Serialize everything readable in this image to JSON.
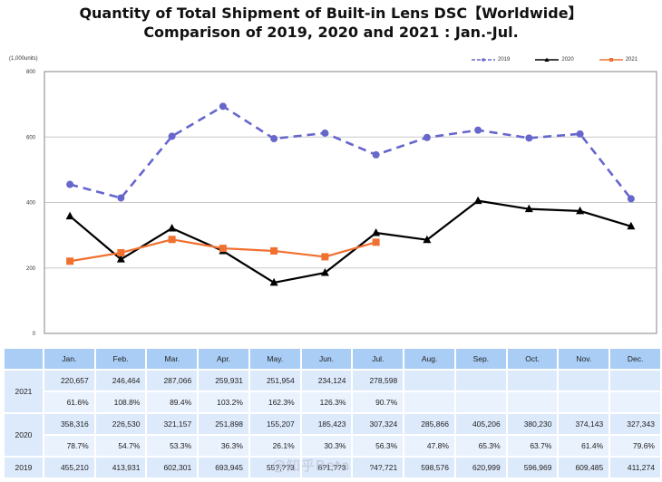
{
  "title_line1": "Quantity of Total Shipment of Built-in Lens DSC【Worldwide】",
  "title_line2": "Comparison of 2019, 2020 and 2021 : Jan.-Jul.",
  "chart_data": {
    "type": "line",
    "title": "Quantity of Total Shipment of Built-in Lens DSC【Worldwide】 Comparison of 2019, 2020 and 2021 : Jan.-Jul.",
    "ylabel": "(1,000units)",
    "xlabel": "",
    "ylim": [
      0,
      800
    ],
    "yticks": [
      0,
      200,
      400,
      600,
      800
    ],
    "grid": true,
    "legend_position": "top-right",
    "categories": [
      "Jan.",
      "Feb.",
      "Mar.",
      "Apr.",
      "May.",
      "Jun.",
      "Jul.",
      "Aug.",
      "Sep.",
      "Oct.",
      "Nov.",
      "Dec."
    ],
    "series": [
      {
        "name": "2019",
        "color": "#6666cc",
        "style": "dashed",
        "marker": "circle",
        "values": [
          455.2,
          413.9,
          602.3,
          693.9,
          595,
          612,
          545.7,
          598.6,
          621.0,
          597.0,
          609.5,
          411.3
        ]
      },
      {
        "name": "2020",
        "color": "#000000",
        "style": "solid",
        "marker": "triangle",
        "values": [
          358.3,
          226.5,
          321.2,
          251.9,
          155.2,
          185.4,
          307.3,
          285.9,
          405.2,
          380.2,
          374.1,
          327.3
        ]
      },
      {
        "name": "2021",
        "color": "#f07030",
        "style": "solid",
        "marker": "square",
        "values": [
          220.7,
          246.5,
          287.1,
          259.9,
          252.0,
          234.1,
          278.6,
          null,
          null,
          null,
          null,
          null
        ]
      }
    ]
  },
  "table": {
    "header": [
      "",
      "Jan.",
      "Feb.",
      "Mar.",
      "Apr.",
      "May.",
      "Jun.",
      "Jul.",
      "Aug.",
      "Sep.",
      "Oct.",
      "Nov.",
      "Dec."
    ],
    "rows": [
      {
        "year": "2021",
        "values": [
          "220,657",
          "246,464",
          "287,066",
          "259,931",
          "251,954",
          "234,124",
          "278,598",
          "",
          "",
          "",
          "",
          ""
        ],
        "pct": [
          "61.6%",
          "108.8%",
          "89.4%",
          "103.2%",
          "162.3%",
          "126.3%",
          "90.7%",
          "",
          "",
          "",
          "",
          ""
        ]
      },
      {
        "year": "2020",
        "values": [
          "358,316",
          "226,530",
          "321,157",
          "251,898",
          "155,207",
          "185,423",
          "307,324",
          "285,866",
          "405,206",
          "380,230",
          "374,143",
          "327,343"
        ],
        "pct": [
          "78.7%",
          "54.7%",
          "53.3%",
          "36.3%",
          "26.1%",
          "30.3%",
          "56.3%",
          "47.8%",
          "65.3%",
          "63.7%",
          "61.4%",
          "79.6%"
        ]
      },
      {
        "year": "2019",
        "values": [
          "455,210",
          "413,931",
          "602,301",
          "693,945",
          "55?,??3",
          "6?1,??3",
          "?4?,721",
          "598,576",
          "620,999",
          "596,969",
          "609,485",
          "411,274"
        ]
      }
    ]
  },
  "watermark": "@知乎Beta"
}
